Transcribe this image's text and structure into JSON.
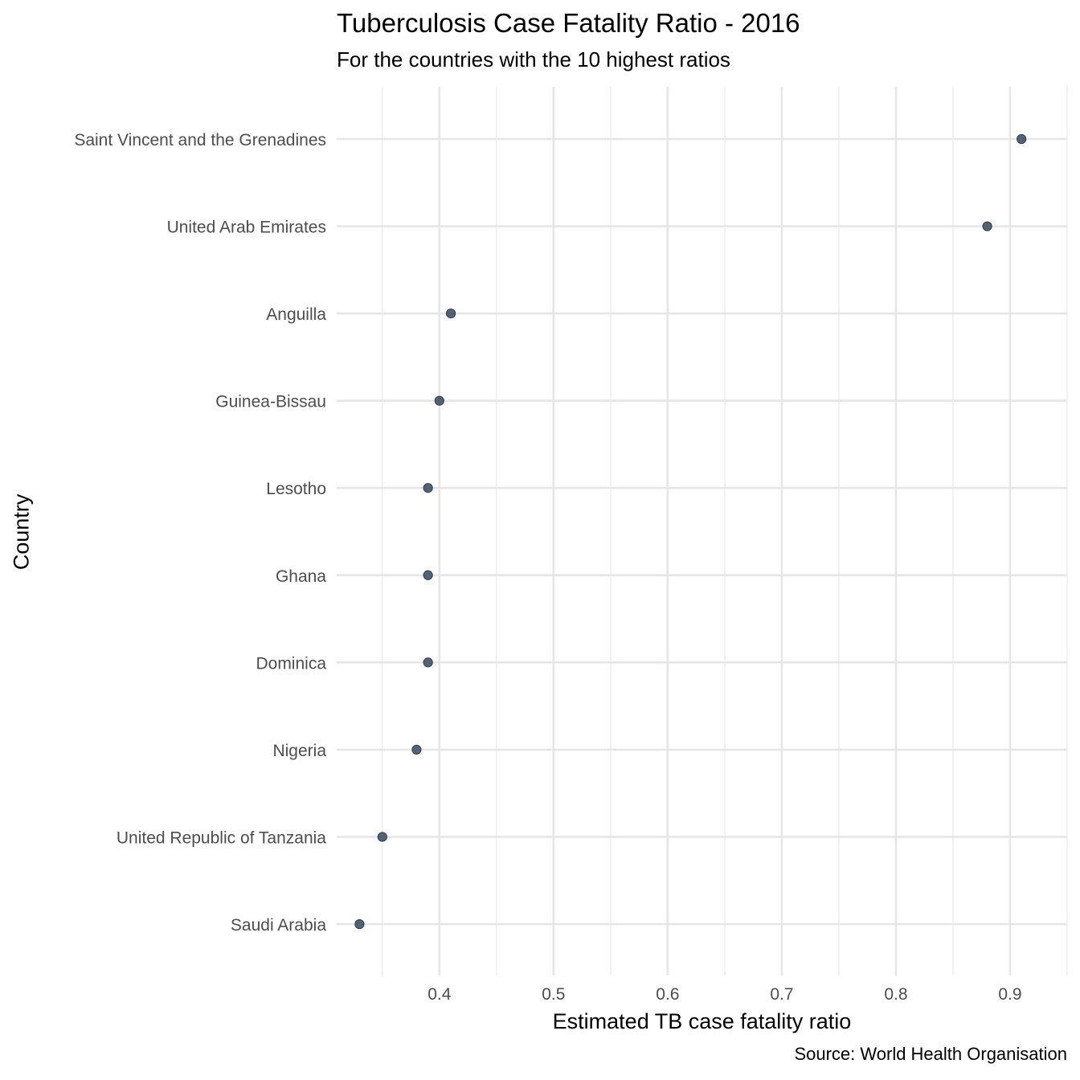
{
  "chart_data": {
    "type": "scatter",
    "title": "Tuberculosis Case Fatality Ratio - 2016",
    "subtitle": "For the countries with the 10 highest ratios",
    "caption": "Source: World Health Organisation",
    "xlabel": "Estimated TB case fatality ratio",
    "ylabel": "Country",
    "xlim": [
      0.31,
      0.95
    ],
    "x_ticks": [
      0.4,
      0.5,
      0.6,
      0.7,
      0.8,
      0.9
    ],
    "x_tick_labels": [
      "0.4",
      "0.5",
      "0.6",
      "0.7",
      "0.8",
      "0.9"
    ],
    "categories": [
      "Saint Vincent and the Grenadines",
      "United Arab Emirates",
      "Anguilla",
      "Guinea-Bissau",
      "Lesotho",
      "Ghana",
      "Dominica",
      "Nigeria",
      "United Republic of Tanzania",
      "Saudi Arabia"
    ],
    "values": [
      0.91,
      0.88,
      0.41,
      0.4,
      0.39,
      0.39,
      0.39,
      0.38,
      0.35,
      0.33
    ],
    "grid": true,
    "legend": "none",
    "point_color": "#34495e"
  }
}
